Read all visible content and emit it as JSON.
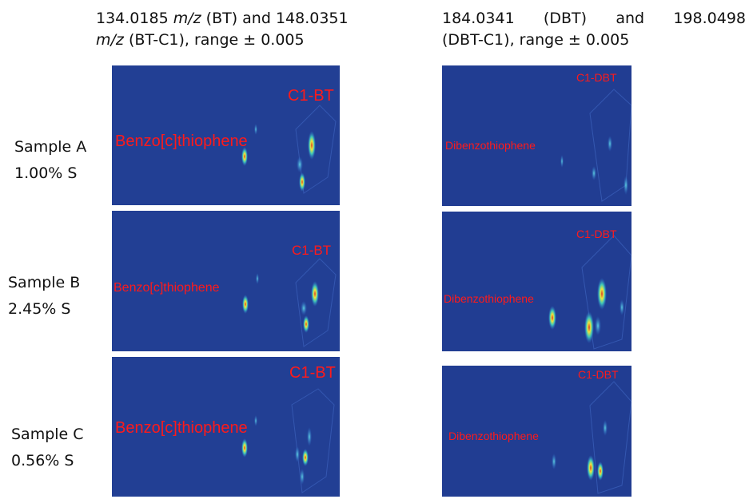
{
  "headers": [
    {
      "lines": [
        [
          "134.0185",
          "m/z",
          "(BT) and 148.0351"
        ],
        [
          "m/z",
          "(BT-C1), range ± 0.005"
        ]
      ]
    },
    {
      "lines": [
        "184.0341 (DBT) and 198.0498",
        "(DBT-C1), range ± 0.005"
      ]
    }
  ],
  "samples": [
    {
      "name": "Sample A",
      "sulfur": "1.00% S"
    },
    {
      "name": "Sample B",
      "sulfur": "2.45% S"
    },
    {
      "name": "Sample C",
      "sulfur": "0.56% S"
    }
  ],
  "rows": [
    {
      "left": {
        "compound": "Benzo[c]thiophene",
        "methyl": "C1-BT"
      },
      "right": {
        "compound": "Dibenzothiophene",
        "methyl": "C1-DBT"
      }
    },
    {
      "left": {
        "compound": "Benzo[c]thiophene",
        "methyl": "C1-BT"
      },
      "right": {
        "compound": "Dibenzothiophene",
        "methyl": "C1-DBT"
      }
    },
    {
      "left": {
        "compound": "Benzo[c]thiophene",
        "methyl": "C1-BT"
      },
      "right": {
        "compound": "Dibenzothiophene",
        "methyl": "C1-DBT"
      }
    }
  ]
}
